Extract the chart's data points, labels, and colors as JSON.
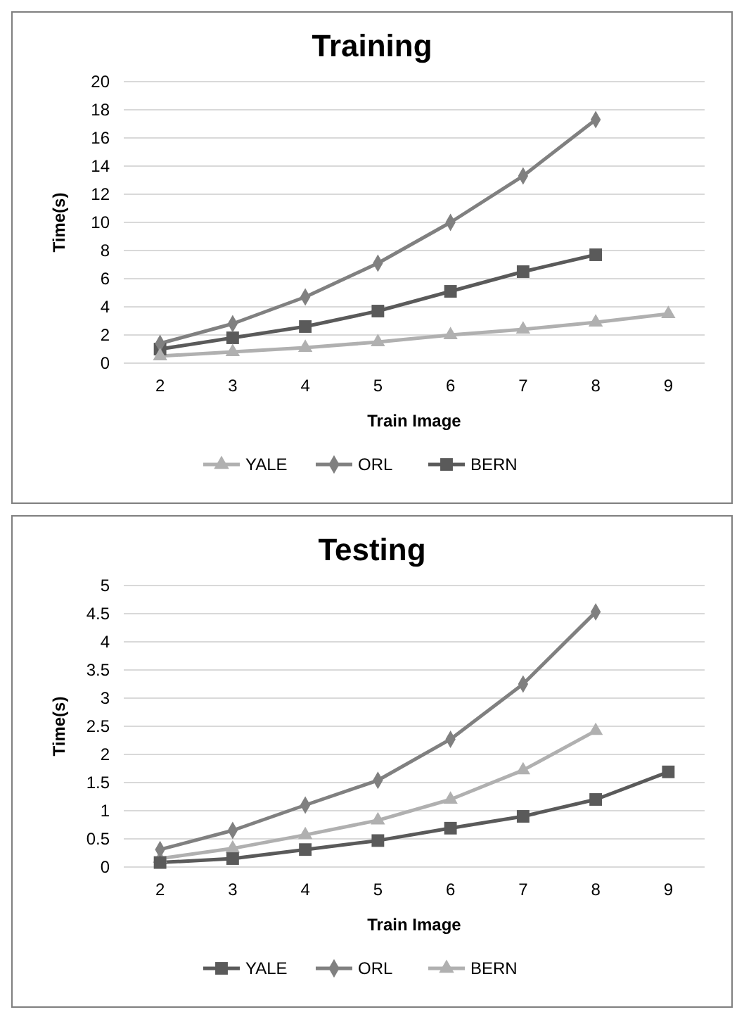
{
  "chart_data": [
    {
      "type": "line",
      "title": "Training",
      "xlabel": "Train Image",
      "ylabel": "Time(s)",
      "categories": [
        "2",
        "3",
        "4",
        "5",
        "6",
        "7",
        "8",
        "9"
      ],
      "ylim": [
        0,
        20
      ],
      "yticks": [
        0,
        2,
        4,
        6,
        8,
        10,
        12,
        14,
        16,
        18,
        20
      ],
      "grid": "y",
      "legend": "bottom",
      "series": [
        {
          "name": "YALE",
          "color": "#b0b0b0",
          "marker": "triangle",
          "values": [
            0.5,
            0.8,
            1.1,
            1.5,
            2.0,
            2.4,
            2.9,
            3.5
          ]
        },
        {
          "name": "ORL",
          "color": "#808080",
          "marker": "diamond",
          "values": [
            1.4,
            2.8,
            4.7,
            7.1,
            10.0,
            13.3,
            17.3,
            null
          ]
        },
        {
          "name": "BERN",
          "color": "#5a5a5a",
          "marker": "square",
          "values": [
            1.0,
            1.8,
            2.6,
            3.7,
            5.1,
            6.5,
            7.7,
            null
          ]
        }
      ]
    },
    {
      "type": "line",
      "title": "Testing",
      "xlabel": "Train Image",
      "ylabel": "Time(s)",
      "categories": [
        "2",
        "3",
        "4",
        "5",
        "6",
        "7",
        "8",
        "9"
      ],
      "ylim": [
        0,
        5
      ],
      "yticks": [
        0,
        0.5,
        1,
        1.5,
        2,
        2.5,
        3,
        3.5,
        4,
        4.5,
        5
      ],
      "grid": "y",
      "legend": "bottom",
      "series": [
        {
          "name": "YALE",
          "color": "#5a5a5a",
          "marker": "square",
          "values": [
            0.08,
            0.15,
            0.31,
            0.47,
            0.69,
            0.9,
            1.2,
            1.69
          ]
        },
        {
          "name": "ORL",
          "color": "#808080",
          "marker": "diamond",
          "values": [
            0.31,
            0.65,
            1.1,
            1.54,
            2.27,
            3.25,
            4.53,
            null
          ]
        },
        {
          "name": "BERN",
          "color": "#b0b0b0",
          "marker": "triangle",
          "values": [
            0.15,
            0.33,
            0.57,
            0.83,
            1.2,
            1.72,
            2.42,
            null
          ]
        }
      ]
    }
  ]
}
